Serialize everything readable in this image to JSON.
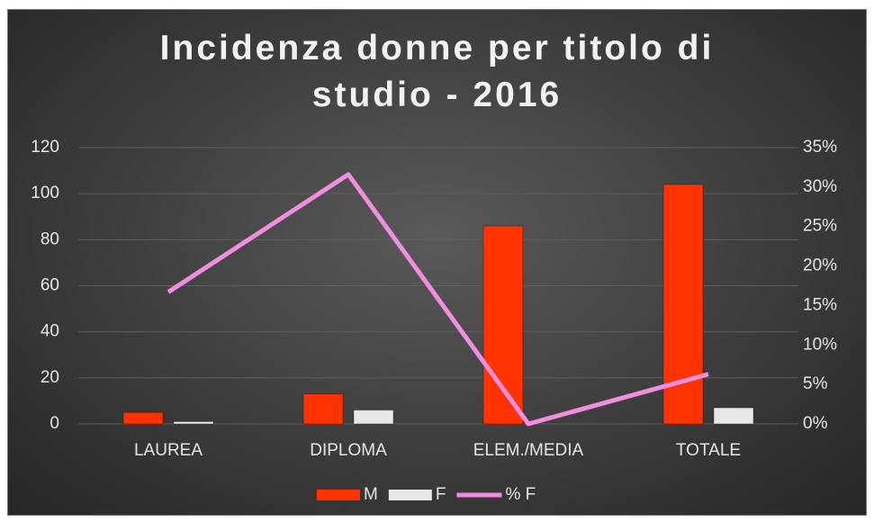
{
  "chart_data": {
    "type": "bar",
    "title": "Incidenza donne per titolo di studio - 2016",
    "categories": [
      "LAUREA",
      "DIPLOMA",
      "ELEM./MEDIA",
      "TOTALE"
    ],
    "series": [
      {
        "name": "M",
        "color": "#ff3300",
        "values": [
          5,
          13,
          86,
          104
        ]
      },
      {
        "name": "F",
        "color": "#e8e8e8",
        "values": [
          1,
          6,
          0,
          7
        ]
      },
      {
        "name": "% F",
        "type": "line",
        "axis": "y2",
        "color": "#f08ee0",
        "values": [
          16.7,
          31.6,
          0,
          6.3
        ]
      }
    ],
    "ylim": [
      0,
      120
    ],
    "yticks": [
      0,
      20,
      40,
      60,
      80,
      100,
      120
    ],
    "y2lim": [
      0,
      35
    ],
    "y2ticks": [
      {
        "value": 0,
        "label": "0%"
      },
      {
        "value": 5,
        "label": "5%"
      },
      {
        "value": 10,
        "label": "10%"
      },
      {
        "value": 15,
        "label": "15%"
      },
      {
        "value": 20,
        "label": "20%"
      },
      {
        "value": 25,
        "label": "25%"
      },
      {
        "value": 30,
        "label": "30%"
      },
      {
        "value": 35,
        "label": "35%"
      }
    ],
    "grid": true,
    "legend": "bottom"
  }
}
